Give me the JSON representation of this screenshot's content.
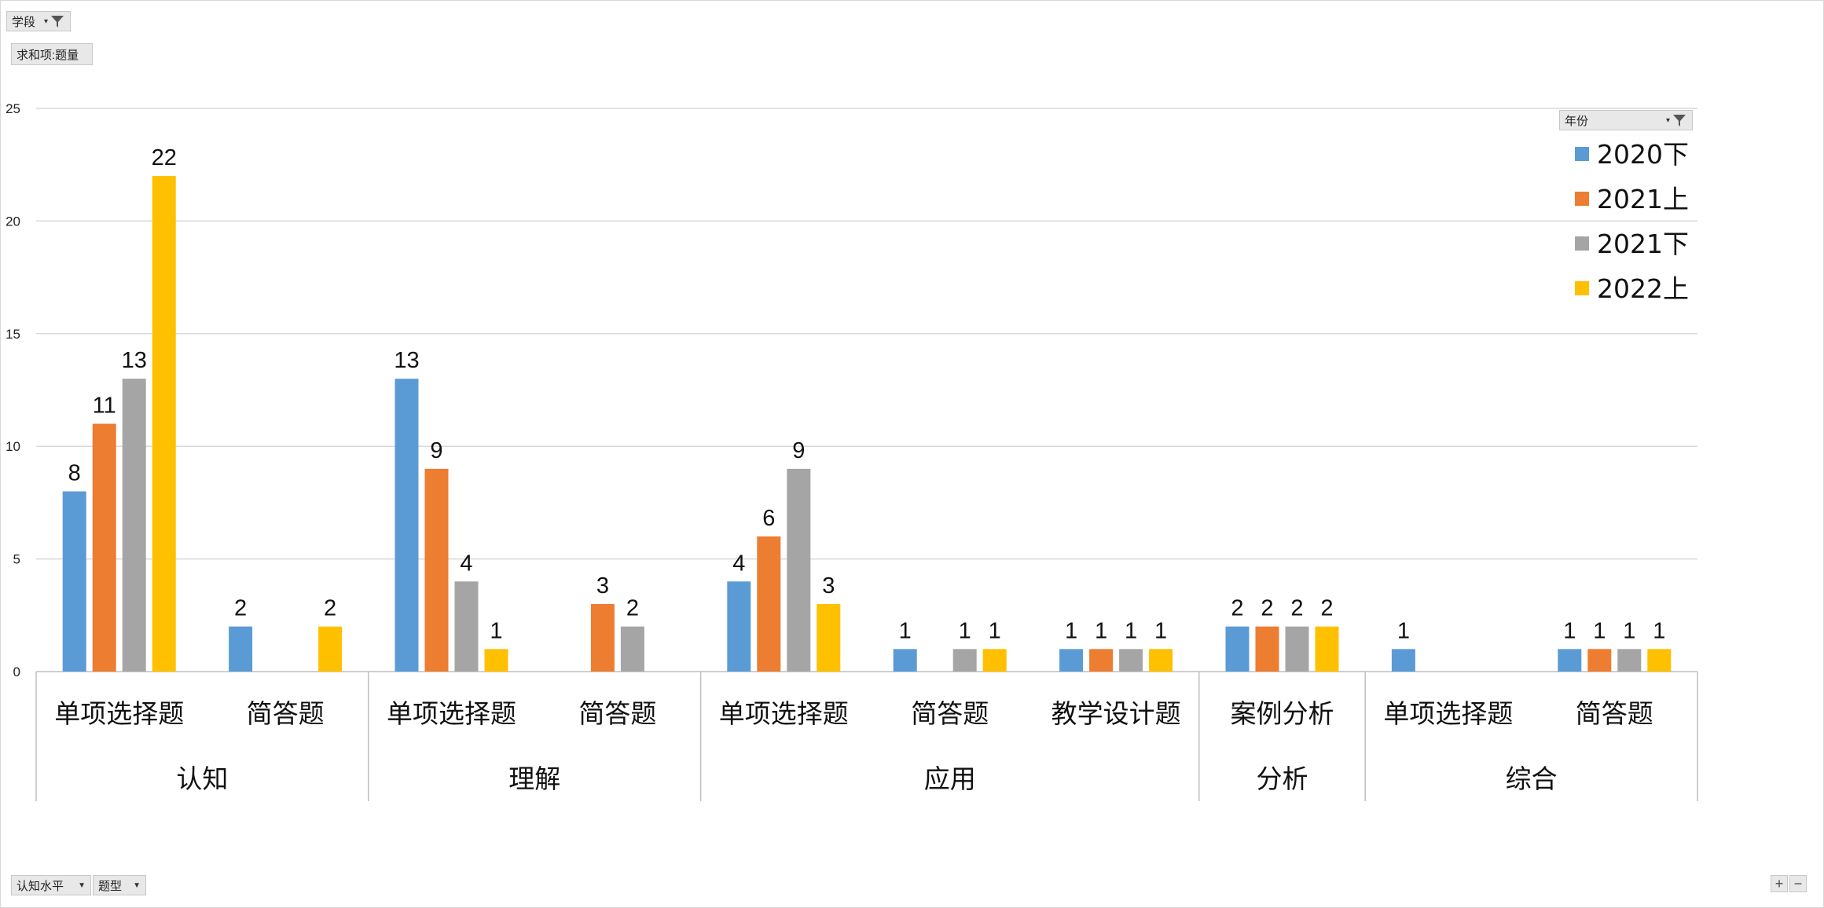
{
  "filter_fields": {
    "stage": "学段",
    "value_field": "求和项:题量",
    "legend_field": "年份",
    "axis_field_1": "认知水平",
    "axis_field_2": "题型"
  },
  "zoom": {
    "plus": "+",
    "minus": "−"
  },
  "chart_data": {
    "type": "bar",
    "title": "",
    "xlabel": "",
    "ylabel": "",
    "ylim": [
      0,
      25
    ],
    "yticks": [
      0,
      5,
      10,
      15,
      20,
      25
    ],
    "grid": true,
    "legend_position": "top-right",
    "colors": [
      "#5b9bd5",
      "#ed7d31",
      "#a5a5a5",
      "#ffc000"
    ],
    "series_names": [
      "2020下",
      "2021上",
      "2021下",
      "2022上"
    ],
    "groups": [
      {
        "label": "认知",
        "categories": [
          {
            "label": "单项选择题",
            "values": [
              8,
              11,
              13,
              22
            ]
          },
          {
            "label": "简答题",
            "values": [
              2,
              null,
              null,
              2
            ]
          }
        ]
      },
      {
        "label": "理解",
        "categories": [
          {
            "label": "单项选择题",
            "values": [
              13,
              9,
              4,
              1
            ]
          },
          {
            "label": "简答题",
            "values": [
              null,
              3,
              2,
              null
            ]
          }
        ]
      },
      {
        "label": "应用",
        "categories": [
          {
            "label": "单项选择题",
            "values": [
              4,
              6,
              9,
              3
            ]
          },
          {
            "label": "简答题",
            "values": [
              1,
              null,
              1,
              1
            ]
          },
          {
            "label": "教学设计题",
            "values": [
              1,
              1,
              1,
              1
            ]
          }
        ]
      },
      {
        "label": "分析",
        "categories": [
          {
            "label": "案例分析",
            "values": [
              2,
              2,
              2,
              2
            ]
          }
        ]
      },
      {
        "label": "综合",
        "categories": [
          {
            "label": "单项选择题",
            "values": [
              1,
              null,
              null,
              null
            ]
          },
          {
            "label": "简答题",
            "values": [
              1,
              1,
              1,
              1
            ]
          }
        ]
      }
    ]
  }
}
